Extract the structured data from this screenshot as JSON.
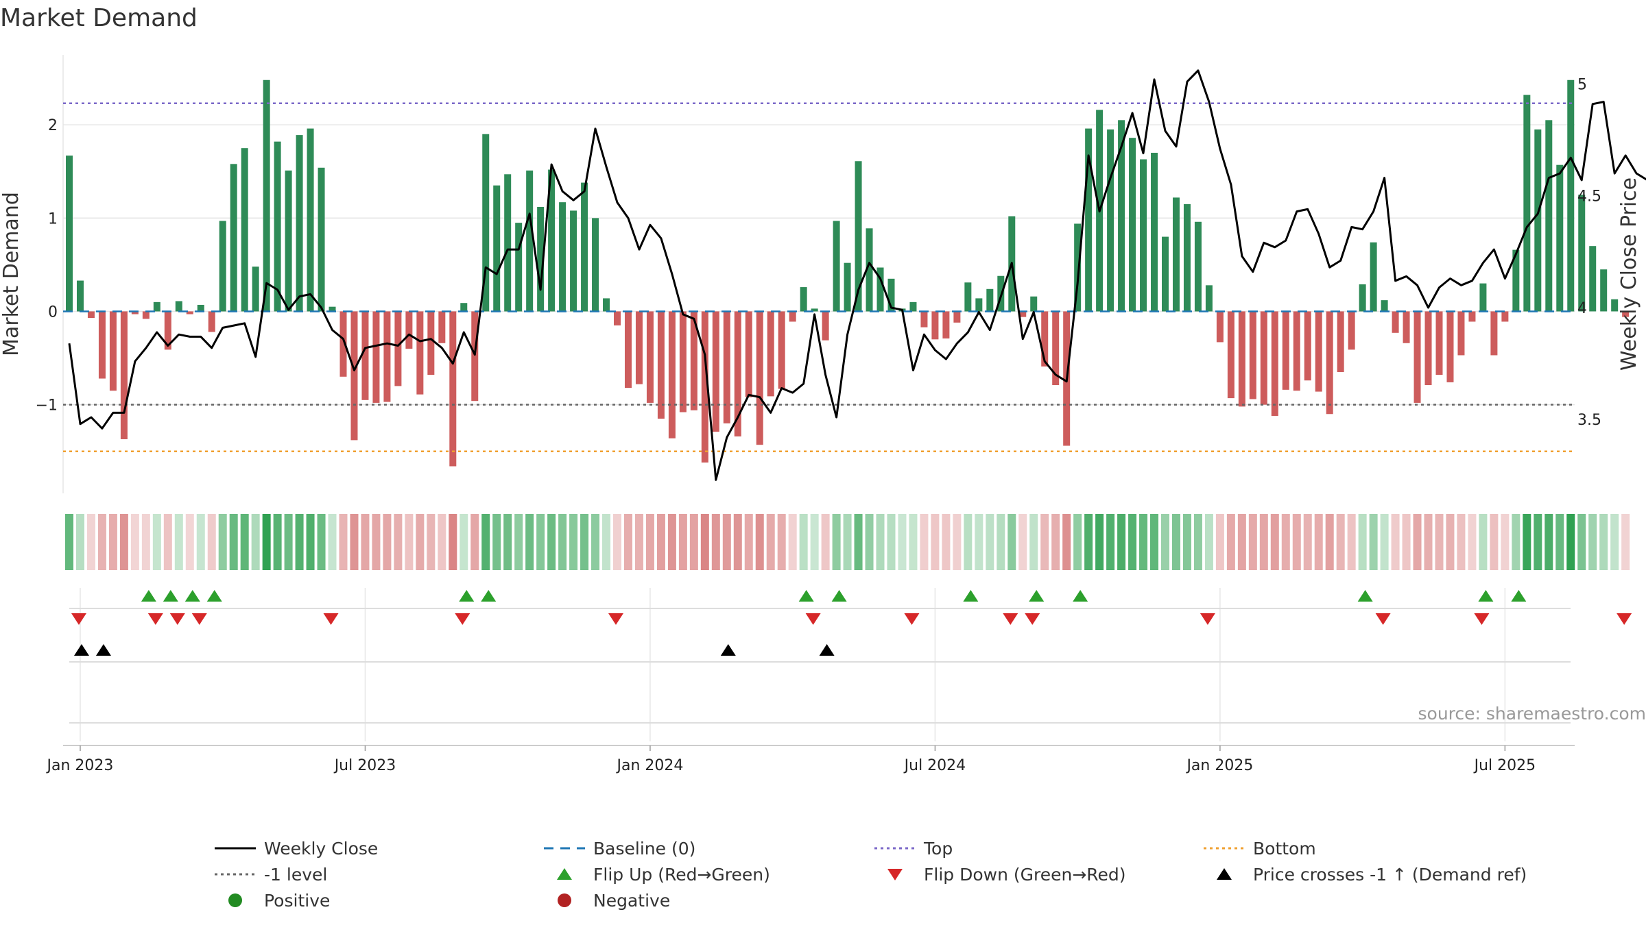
{
  "chart_data": {
    "type": "bar",
    "title": "Market Demand",
    "ylabel": "Market Demand",
    "y2label": "Weekly Close Price",
    "ylim": [
      -1.95,
      2.75
    ],
    "y2lim": [
      3.17,
      5.13
    ],
    "yticks": [
      {
        "v": 2,
        "label": "2"
      },
      {
        "v": 1,
        "label": "1"
      },
      {
        "v": 0,
        "label": "0"
      },
      {
        "v": -1,
        "label": "−1"
      }
    ],
    "y2ticks": [
      {
        "v": 5,
        "label": "5"
      },
      {
        "v": 4.5,
        "label": "4.5"
      },
      {
        "v": 4,
        "label": "4"
      },
      {
        "v": 3.5,
        "label": "3.5"
      }
    ],
    "xticks": [
      {
        "w": 1,
        "label": "Jan 2023"
      },
      {
        "w": 27,
        "label": "Jul 2023"
      },
      {
        "w": 53,
        "label": "Jan 2024"
      },
      {
        "w": 79,
        "label": "Jul 2024"
      },
      {
        "w": 105,
        "label": "Jan 2025"
      },
      {
        "w": 131,
        "label": "Jul 2025"
      }
    ],
    "reference_lines": {
      "baseline": 0,
      "top": 2.23,
      "bottom": -1.5,
      "minus_one": -1
    },
    "demand": [
      1.67,
      0.33,
      -0.07,
      -0.72,
      -0.85,
      -1.37,
      -0.03,
      -0.08,
      0.1,
      -0.41,
      0.11,
      -0.03,
      0.07,
      -0.22,
      0.97,
      1.58,
      1.75,
      0.48,
      2.48,
      1.82,
      1.51,
      1.89,
      1.96,
      1.54,
      0.05,
      -0.7,
      -1.38,
      -0.95,
      -0.98,
      -0.97,
      -0.8,
      -0.4,
      -0.89,
      -0.68,
      -0.34,
      -1.66,
      0.09,
      -0.96,
      1.9,
      1.35,
      1.47,
      0.95,
      1.51,
      1.12,
      1.52,
      1.17,
      1.08,
      1.38,
      1.0,
      0.14,
      -0.15,
      -0.82,
      -0.78,
      -0.98,
      -1.15,
      -1.36,
      -1.08,
      -1.06,
      -1.62,
      -1.29,
      -1.2,
      -1.34,
      -0.92,
      -1.43,
      -0.91,
      -0.83,
      -0.11,
      0.26,
      0.03,
      -0.31,
      0.97,
      0.52,
      1.61,
      0.89,
      0.47,
      0.35,
      0.03,
      0.1,
      -0.17,
      -0.3,
      -0.29,
      -0.12,
      0.31,
      0.14,
      0.24,
      0.38,
      1.02,
      -0.06,
      0.16,
      -0.59,
      -0.79,
      -1.44,
      0.94,
      1.96,
      2.16,
      1.95,
      2.05,
      1.86,
      1.63,
      1.7,
      0.8,
      1.22,
      1.15,
      0.96,
      0.28,
      -0.33,
      -0.93,
      -1.02,
      -0.94,
      -1.0,
      -1.12,
      -0.84,
      -0.85,
      -0.74,
      -0.86,
      -1.1,
      -0.65,
      -0.41,
      0.29,
      0.74,
      0.12,
      -0.23,
      -0.34,
      -0.98,
      -0.79,
      -0.68,
      -0.76,
      -0.47,
      -0.11,
      0.3,
      -0.47,
      -0.11,
      0.66,
      2.32,
      1.95,
      2.05,
      1.57,
      2.48,
      1.25,
      0.7,
      0.45,
      0.13,
      -0.06
    ],
    "price": [
      3.84,
      3.48,
      3.51,
      3.46,
      3.53,
      3.53,
      3.76,
      3.82,
      3.89,
      3.83,
      3.88,
      3.87,
      3.87,
      3.82,
      3.91,
      3.92,
      3.93,
      3.78,
      4.11,
      4.08,
      3.99,
      4.05,
      4.06,
      4.0,
      3.9,
      3.86,
      3.72,
      3.82,
      3.83,
      3.84,
      3.83,
      3.88,
      3.85,
      3.86,
      3.82,
      3.75,
      3.89,
      3.79,
      4.18,
      4.15,
      4.26,
      4.26,
      4.42,
      4.08,
      4.64,
      4.52,
      4.48,
      4.52,
      4.8,
      4.63,
      4.47,
      4.4,
      4.26,
      4.37,
      4.31,
      4.15,
      3.97,
      3.95,
      3.79,
      3.23,
      3.42,
      3.51,
      3.61,
      3.6,
      3.53,
      3.64,
      3.62,
      3.66,
      3.97,
      3.7,
      3.51,
      3.88,
      4.08,
      4.2,
      4.13,
      4.0,
      3.99,
      3.72,
      3.88,
      3.81,
      3.77,
      3.84,
      3.89,
      3.98,
      3.9,
      4.05,
      4.2,
      3.86,
      3.98,
      3.76,
      3.7,
      3.67,
      4.11,
      4.68,
      4.43,
      4.58,
      4.72,
      4.87,
      4.69,
      5.02,
      4.79,
      4.72,
      5.01,
      5.06,
      4.92,
      4.71,
      4.55,
      4.23,
      4.16,
      4.29,
      4.27,
      4.3,
      4.43,
      4.44,
      4.33,
      4.18,
      4.21,
      4.36,
      4.35,
      4.43,
      4.58,
      4.12,
      4.14,
      4.1,
      4.0,
      4.09,
      4.13,
      4.1,
      4.12,
      4.2,
      4.26,
      4.13,
      4.24,
      4.36,
      4.42,
      4.58,
      4.6,
      4.67,
      4.57,
      4.91,
      4.92,
      4.6,
      4.68,
      4.6,
      4.57
    ],
    "flip_up_weeks": [
      7,
      9,
      11,
      13,
      36,
      38,
      67,
      70,
      82,
      88,
      92,
      118,
      129,
      132
    ],
    "flip_down_weeks": [
      1,
      8,
      10,
      12,
      24,
      36,
      50,
      68,
      77,
      86,
      88,
      104,
      120,
      129,
      142
    ],
    "price_cross_weeks": [
      1,
      3,
      60,
      69
    ],
    "source": "source: sharemaestro.com"
  },
  "legend": [
    {
      "label": "Weekly Close",
      "marker": "line-black"
    },
    {
      "label": "Baseline (0)",
      "marker": "dash-blue"
    },
    {
      "label": "Top",
      "marker": "dot-purple"
    },
    {
      "label": "Bottom",
      "marker": "dot-orange"
    },
    {
      "label": "-1 level",
      "marker": "dot-grey"
    },
    {
      "label": "Flip Up (Red→Green)",
      "marker": "triangle-up-green"
    },
    {
      "label": "Flip Down (Green→Red)",
      "marker": "triangle-down-red"
    },
    {
      "label": "Price crosses -1 ↑ (Demand ref)",
      "marker": "triangle-up-black"
    },
    {
      "label": "Positive",
      "marker": "circle-green"
    },
    {
      "label": "Negative",
      "marker": "circle-red"
    }
  ],
  "colors": {
    "positive": "#2e8b57",
    "negative": "#cd5c5c",
    "price": "#000000",
    "baseline": "#1f77b4",
    "top": "#7b68c8",
    "bottom": "#f0a030",
    "minus_one": "#666666",
    "flip_up": "#2ca02c",
    "flip_down": "#d62728",
    "price_cross": "#000000",
    "grid": "#e6e6e6",
    "legend_positive": "#228b22",
    "legend_negative": "#b22222"
  }
}
